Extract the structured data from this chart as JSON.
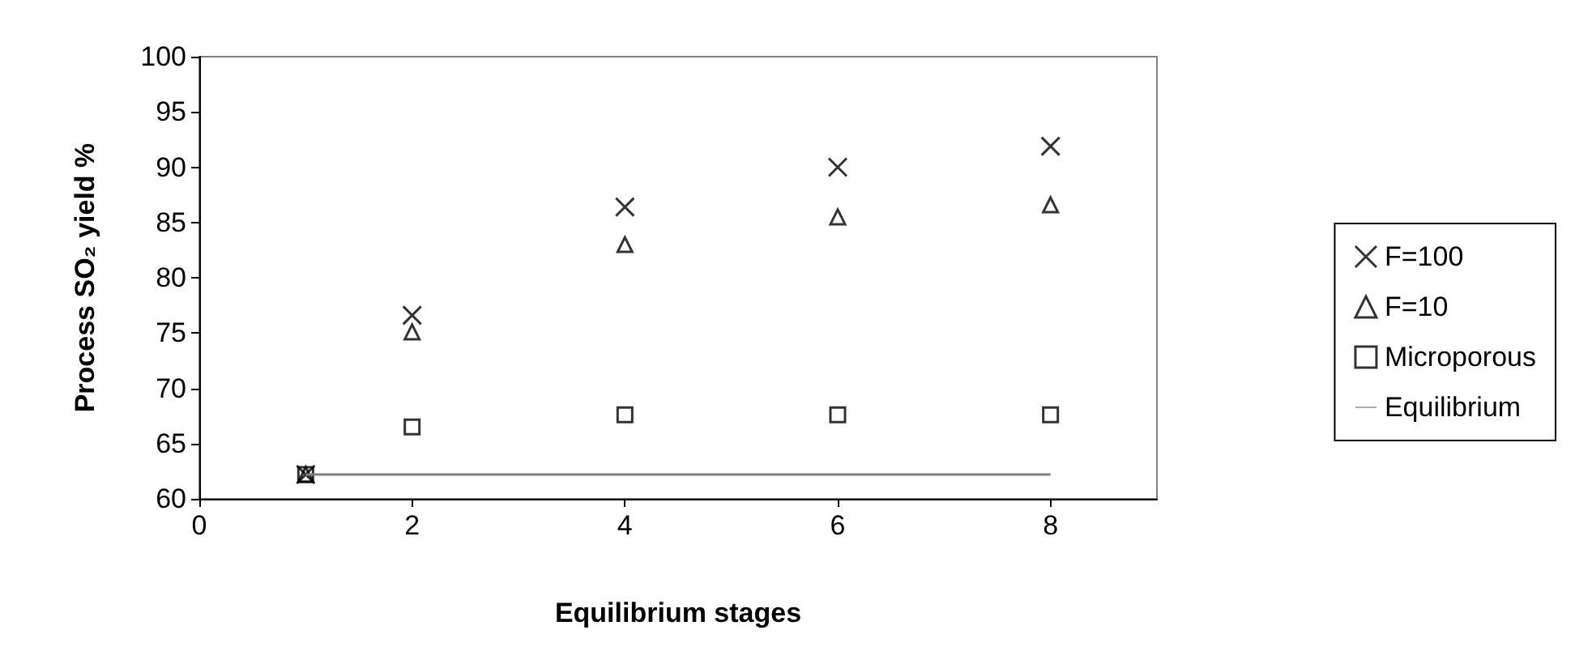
{
  "chart_data": {
    "type": "scatter",
    "xlabel": "Equilibrium stages",
    "ylabel": "Process SO₂ yield %",
    "xlim": [
      0,
      9
    ],
    "xticks": [
      0,
      2,
      4,
      6,
      8
    ],
    "ylim": [
      60,
      100
    ],
    "yticks": [
      60,
      65,
      70,
      75,
      80,
      85,
      90,
      95,
      100
    ],
    "grid": false,
    "legend": "right",
    "series": [
      {
        "name": "F=100",
        "color": "#000000",
        "marker": "cross",
        "x": [
          1,
          2,
          4,
          6,
          8
        ],
        "values": [
          62.2,
          76.6,
          86.4,
          90.0,
          91.9
        ]
      },
      {
        "name": "F=10",
        "color": "#000000",
        "marker": "triangle",
        "x": [
          1,
          2,
          4,
          6,
          8
        ],
        "values": [
          62.2,
          75.1,
          83.0,
          85.5,
          86.6
        ]
      },
      {
        "name": "Microporous",
        "color": "#000000",
        "marker": "square",
        "x": [
          1,
          2,
          4,
          6,
          8
        ],
        "values": [
          62.2,
          66.5,
          67.6,
          67.6,
          67.6
        ]
      },
      {
        "name": "Equilibrium",
        "type": "line",
        "color": "#808080",
        "marker": "none",
        "line_style": "solid",
        "x": [
          1,
          8
        ],
        "values": [
          62.2,
          62.2
        ]
      }
    ]
  }
}
